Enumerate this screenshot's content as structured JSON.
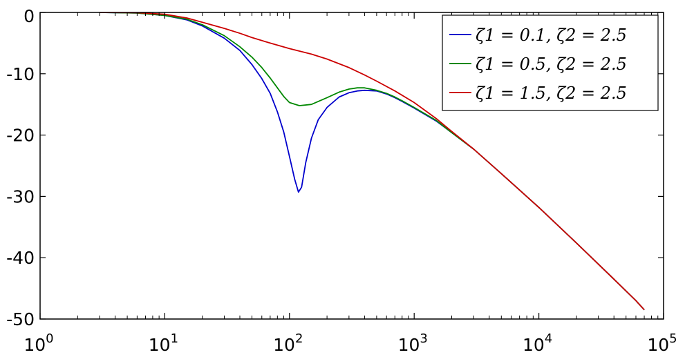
{
  "chart_data": {
    "type": "line",
    "title": "",
    "xlabel": "",
    "ylabel": "",
    "xscale": "log",
    "xlim": [
      1,
      100000
    ],
    "ylim": [
      -50,
      0
    ],
    "grid": false,
    "legend_position": "top-right",
    "x_ticks": [
      {
        "value": 1,
        "base": "10",
        "exp": "0"
      },
      {
        "value": 10,
        "base": "10",
        "exp": "1"
      },
      {
        "value": 100,
        "base": "10",
        "exp": "2"
      },
      {
        "value": 1000,
        "base": "10",
        "exp": "3"
      },
      {
        "value": 10000,
        "base": "10",
        "exp": "4"
      },
      {
        "value": 100000,
        "base": "10",
        "exp": "5"
      }
    ],
    "y_ticks": [
      {
        "value": 0,
        "label": "0"
      },
      {
        "value": -10,
        "label": "-10"
      },
      {
        "value": -20,
        "label": "-20"
      },
      {
        "value": -30,
        "label": "-30"
      },
      {
        "value": -40,
        "label": "-40"
      },
      {
        "value": -50,
        "label": "-50"
      }
    ],
    "series": [
      {
        "name": "ζ1 = 0.1, ζ2 = 2.5",
        "color": "#0000cc",
        "points": [
          [
            3,
            0
          ],
          [
            6,
            -0.1
          ],
          [
            10,
            -0.5
          ],
          [
            15,
            -1.2
          ],
          [
            20,
            -2.2
          ],
          [
            30,
            -4.2
          ],
          [
            40,
            -6.2
          ],
          [
            50,
            -8.5
          ],
          [
            60,
            -10.8
          ],
          [
            70,
            -13.2
          ],
          [
            80,
            -16.2
          ],
          [
            90,
            -19.5
          ],
          [
            100,
            -23.5
          ],
          [
            110,
            -27.2
          ],
          [
            118,
            -29.3
          ],
          [
            125,
            -28.5
          ],
          [
            135,
            -24.5
          ],
          [
            150,
            -20.5
          ],
          [
            170,
            -17.5
          ],
          [
            200,
            -15.5
          ],
          [
            250,
            -13.8
          ],
          [
            300,
            -13.1
          ],
          [
            350,
            -12.8
          ],
          [
            400,
            -12.7
          ],
          [
            500,
            -12.8
          ],
          [
            600,
            -13.3
          ],
          [
            700,
            -13.9
          ],
          [
            800,
            -14.5
          ],
          [
            1000,
            -15.6
          ],
          [
            1500,
            -17.7
          ],
          [
            2000,
            -19.6
          ],
          [
            3000,
            -22.3
          ],
          [
            5000,
            -26.3
          ],
          [
            10000,
            -31.8
          ],
          [
            20000,
            -37.6
          ],
          [
            40000,
            -43.5
          ],
          [
            60000,
            -47.0
          ],
          [
            70000,
            -48.5
          ]
        ]
      },
      {
        "name": "ζ1 = 0.5, ζ2 = 2.5",
        "color": "#008800",
        "points": [
          [
            3,
            0
          ],
          [
            6,
            -0.1
          ],
          [
            10,
            -0.5
          ],
          [
            15,
            -1.1
          ],
          [
            20,
            -2.0
          ],
          [
            30,
            -3.8
          ],
          [
            40,
            -5.6
          ],
          [
            50,
            -7.3
          ],
          [
            60,
            -9.0
          ],
          [
            70,
            -10.7
          ],
          [
            80,
            -12.3
          ],
          [
            90,
            -13.7
          ],
          [
            100,
            -14.7
          ],
          [
            120,
            -15.2
          ],
          [
            150,
            -15.0
          ],
          [
            200,
            -13.9
          ],
          [
            250,
            -13.0
          ],
          [
            300,
            -12.5
          ],
          [
            350,
            -12.3
          ],
          [
            400,
            -12.3
          ],
          [
            500,
            -12.7
          ],
          [
            600,
            -13.2
          ],
          [
            700,
            -13.8
          ],
          [
            800,
            -14.4
          ],
          [
            1000,
            -15.5
          ],
          [
            1500,
            -17.6
          ],
          [
            2000,
            -19.6
          ],
          [
            3000,
            -22.3
          ],
          [
            5000,
            -26.3
          ],
          [
            10000,
            -31.8
          ],
          [
            20000,
            -37.6
          ],
          [
            40000,
            -43.5
          ],
          [
            60000,
            -47.0
          ],
          [
            70000,
            -48.5
          ]
        ]
      },
      {
        "name": "ζ1 = 1.5, ζ2 = 2.5",
        "color": "#cc0000",
        "points": [
          [
            3,
            0
          ],
          [
            6,
            -0.05
          ],
          [
            10,
            -0.3
          ],
          [
            15,
            -0.9
          ],
          [
            20,
            -1.6
          ],
          [
            30,
            -2.6
          ],
          [
            40,
            -3.4
          ],
          [
            50,
            -4.1
          ],
          [
            70,
            -5.0
          ],
          [
            100,
            -5.9
          ],
          [
            150,
            -6.8
          ],
          [
            200,
            -7.6
          ],
          [
            300,
            -9.0
          ],
          [
            400,
            -10.2
          ],
          [
            500,
            -11.2
          ],
          [
            700,
            -12.8
          ],
          [
            1000,
            -14.7
          ],
          [
            1500,
            -17.3
          ],
          [
            2000,
            -19.4
          ],
          [
            3000,
            -22.3
          ],
          [
            5000,
            -26.3
          ],
          [
            10000,
            -31.8
          ],
          [
            20000,
            -37.6
          ],
          [
            40000,
            -43.5
          ],
          [
            60000,
            -47.0
          ],
          [
            70000,
            -48.5
          ]
        ]
      }
    ]
  }
}
